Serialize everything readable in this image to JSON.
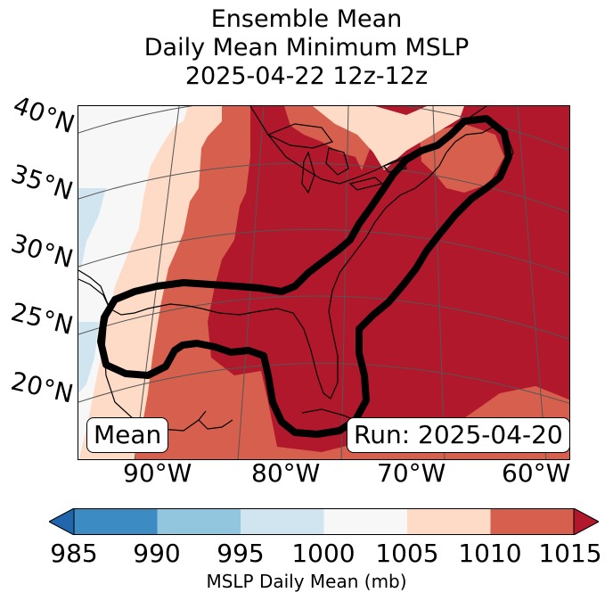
{
  "title": {
    "line1": "Ensemble Mean",
    "line2": "Daily Mean Minimum MSLP",
    "line3": "2025-04-22 12z-12z"
  },
  "map": {
    "latitude_labels": [
      "40°N",
      "35°N",
      "30°N",
      "25°N",
      "20°N"
    ],
    "longitude_labels": [
      "90°W",
      "80°W",
      "70°W",
      "60°W"
    ],
    "left_box": "Mean",
    "right_box": "Run: 2025-04-20"
  },
  "colorbar": {
    "label": "MSLP Daily Mean (mb)",
    "ticks": [
      "985",
      "990",
      "995",
      "1000",
      "1005",
      "1010",
      "1015"
    ],
    "colors": [
      "#2166ac",
      "#3c8bc3",
      "#92c5de",
      "#d1e5f0",
      "#f7f7f7",
      "#fddbc7",
      "#d6604d",
      "#b2182b"
    ]
  },
  "palette": {
    "land_line": "#000000",
    "grid_line": "#555555",
    "contour": "#000000"
  }
}
